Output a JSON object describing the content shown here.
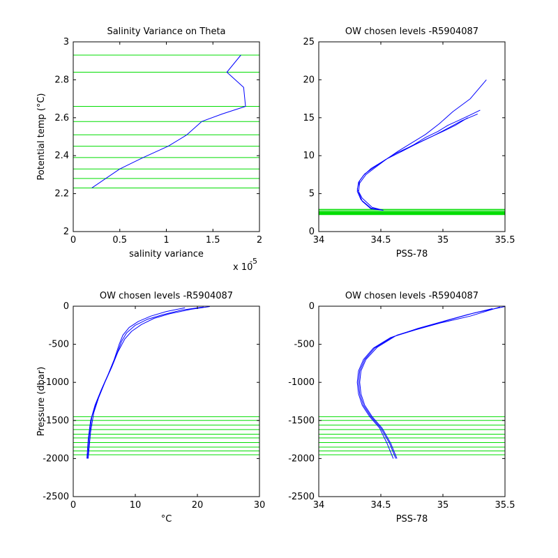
{
  "colors": {
    "line": "#0000ff",
    "level": "#00dd00",
    "axis": "#000000"
  },
  "chart_data": [
    {
      "type": "line",
      "title": "Salinity Variance on Theta",
      "xlabel": "salinity variance",
      "ylabel": "Potential temp (°C)",
      "x_exponent_label": "x 10",
      "x_exponent_power": "-5",
      "xlim": [
        0,
        2
      ],
      "ylim": [
        2,
        3
      ],
      "xticks": [
        0,
        0.5,
        1,
        1.5,
        2
      ],
      "xtick_labels": [
        "0",
        "0.5",
        "1",
        "1.5",
        "2"
      ],
      "yticks": [
        2,
        2.2,
        2.4,
        2.6,
        2.8,
        3
      ],
      "ytick_labels": [
        "2",
        "2.2",
        "2.4",
        "2.6",
        "2.8",
        "3"
      ],
      "grid": false,
      "series": [
        {
          "x": [
            0.2,
            0.5,
            0.75,
            1.02,
            1.22,
            1.38,
            1.6,
            1.85,
            1.83,
            1.65,
            1.8
          ],
          "y": [
            2.23,
            2.33,
            2.39,
            2.45,
            2.51,
            2.58,
            2.62,
            2.66,
            2.76,
            2.84,
            2.93
          ]
        }
      ],
      "level_lines_y": [
        2.23,
        2.28,
        2.33,
        2.39,
        2.45,
        2.51,
        2.58,
        2.66,
        2.84,
        2.93
      ]
    },
    {
      "type": "line",
      "title": "OW chosen levels -R5904087",
      "xlabel": "PSS-78",
      "ylabel": "",
      "xlim": [
        34,
        35.5
      ],
      "ylim": [
        0,
        25
      ],
      "xticks": [
        34,
        34.5,
        35,
        35.5
      ],
      "xtick_labels": [
        "34",
        "34.5",
        "35",
        "35.5"
      ],
      "yticks": [
        0,
        5,
        10,
        15,
        20,
        25
      ],
      "ytick_labels": [
        "0",
        "5",
        "10",
        "15",
        "20",
        "25"
      ],
      "grid": false,
      "series": [
        {
          "x": [
            34.52,
            34.42,
            34.34,
            34.31,
            34.32,
            34.36,
            34.42,
            34.52,
            34.62,
            34.75,
            34.88,
            35.0,
            35.1,
            35.2
          ],
          "y": [
            2.8,
            3.1,
            4.2,
            5.3,
            6.5,
            7.4,
            8.3,
            9.3,
            10.3,
            11.3,
            12.3,
            13.2,
            14.0,
            15.0
          ]
        },
        {
          "x": [
            34.52,
            34.43,
            34.35,
            34.31,
            34.33,
            34.37,
            34.44,
            34.54,
            34.66,
            34.78,
            34.92,
            35.05,
            35.15,
            35.28
          ],
          "y": [
            2.8,
            3.2,
            4.4,
            5.6,
            6.7,
            7.6,
            8.4,
            9.5,
            10.5,
            11.5,
            12.6,
            13.7,
            14.6,
            15.5
          ]
        },
        {
          "x": [
            34.52,
            34.42,
            34.35,
            34.32,
            34.33,
            34.38,
            34.46,
            34.55,
            34.64,
            34.74,
            34.86,
            34.97,
            35.08,
            35.22,
            35.35
          ],
          "y": [
            2.8,
            3.0,
            4.0,
            5.2,
            6.4,
            7.5,
            8.5,
            9.6,
            10.6,
            11.6,
            12.8,
            14.2,
            15.8,
            17.5,
            20.0
          ]
        },
        {
          "x": [
            34.66,
            34.76,
            34.86,
            34.96,
            35.04,
            35.12,
            35.2,
            35.3
          ],
          "y": [
            10.5,
            11.4,
            12.4,
            13.2,
            14.0,
            14.6,
            15.2,
            16.0
          ]
        }
      ],
      "level_lines_y": [
        2.23,
        2.28,
        2.33,
        2.39,
        2.45,
        2.51,
        2.58,
        2.66,
        2.84,
        2.93
      ]
    },
    {
      "type": "line",
      "title": "OW chosen levels -R5904087",
      "xlabel": "°C",
      "ylabel": "Pressure (dbar)",
      "xlim": [
        0,
        30
      ],
      "ylim": [
        -2500,
        0
      ],
      "xticks": [
        0,
        10,
        20,
        30
      ],
      "xtick_labels": [
        "0",
        "10",
        "20",
        "30"
      ],
      "yticks": [
        -2500,
        -2000,
        -1500,
        -1000,
        -500,
        0
      ],
      "ytick_labels": [
        "-2500",
        "-2000",
        "-1500",
        "-1000",
        "-500",
        "0"
      ],
      "grid": false,
      "series": [
        {
          "x": [
            2.2,
            2.4,
            2.8,
            3.5,
            4.5,
            5.6,
            6.6,
            7.4,
            8.0,
            9.0,
            10.5,
            12.5,
            15.0,
            18.0
          ],
          "y": [
            -2000,
            -1750,
            -1500,
            -1300,
            -1100,
            -900,
            -700,
            -500,
            -380,
            -280,
            -200,
            -130,
            -70,
            -20
          ]
        },
        {
          "x": [
            2.3,
            2.6,
            3.0,
            3.8,
            4.8,
            5.9,
            6.9,
            7.8,
            8.6,
            10.0,
            12.0,
            14.5,
            17.5,
            21.0
          ],
          "y": [
            -2000,
            -1700,
            -1450,
            -1250,
            -1050,
            -850,
            -650,
            -460,
            -350,
            -250,
            -170,
            -110,
            -50,
            -10
          ]
        },
        {
          "x": [
            2.4,
            2.8,
            3.3,
            4.1,
            5.1,
            6.2,
            7.2,
            8.3,
            9.4,
            11.0,
            13.0,
            15.5,
            19.0,
            22.0
          ],
          "y": [
            -2000,
            -1650,
            -1400,
            -1200,
            -1000,
            -800,
            -600,
            -430,
            -330,
            -240,
            -160,
            -100,
            -40,
            -5
          ]
        }
      ],
      "level_lines_y": [
        -1450,
        -1500,
        -1560,
        -1620,
        -1680,
        -1730,
        -1790,
        -1850,
        -1900,
        -1950
      ]
    },
    {
      "type": "line",
      "title": "OW chosen levels -R5904087",
      "xlabel": "PSS-78",
      "ylabel": "",
      "xlim": [
        34,
        35.5
      ],
      "ylim": [
        -2500,
        0
      ],
      "xticks": [
        34,
        34.5,
        35,
        35.5
      ],
      "xtick_labels": [
        "34",
        "34.5",
        "35",
        "35.5"
      ],
      "yticks": [
        -2500,
        -2000,
        -1500,
        -1000,
        -500,
        0
      ],
      "ytick_labels": [
        "-2500",
        "-2000",
        "-1500",
        "-1000",
        "-500",
        "0"
      ],
      "grid": false,
      "series": [
        {
          "x": [
            34.62,
            34.57,
            34.5,
            34.42,
            34.36,
            34.33,
            34.32,
            34.33,
            34.37,
            34.45,
            34.6,
            34.8,
            35.0,
            35.2,
            35.4
          ],
          "y": [
            -2000,
            -1800,
            -1600,
            -1450,
            -1300,
            -1150,
            -1000,
            -850,
            -700,
            -550,
            -400,
            -290,
            -200,
            -110,
            -30
          ]
        },
        {
          "x": [
            34.6,
            34.55,
            34.49,
            34.41,
            34.35,
            34.32,
            34.31,
            34.32,
            34.36,
            34.44,
            34.58,
            34.78,
            34.98,
            35.22,
            35.46
          ],
          "y": [
            -2000,
            -1800,
            -1600,
            -1450,
            -1300,
            -1150,
            -1000,
            -850,
            -700,
            -550,
            -410,
            -310,
            -220,
            -130,
            -10
          ]
        },
        {
          "x": [
            34.63,
            34.58,
            34.51,
            34.43,
            34.37,
            34.34,
            34.33,
            34.34,
            34.38,
            34.47,
            34.63,
            34.85,
            35.05,
            35.25,
            35.5
          ],
          "y": [
            -2000,
            -1800,
            -1600,
            -1450,
            -1300,
            -1150,
            -1000,
            -850,
            -700,
            -540,
            -380,
            -270,
            -180,
            -90,
            -5
          ]
        }
      ],
      "level_lines_y": [
        -1450,
        -1500,
        -1560,
        -1620,
        -1680,
        -1730,
        -1790,
        -1850,
        -1900,
        -1950
      ]
    }
  ]
}
